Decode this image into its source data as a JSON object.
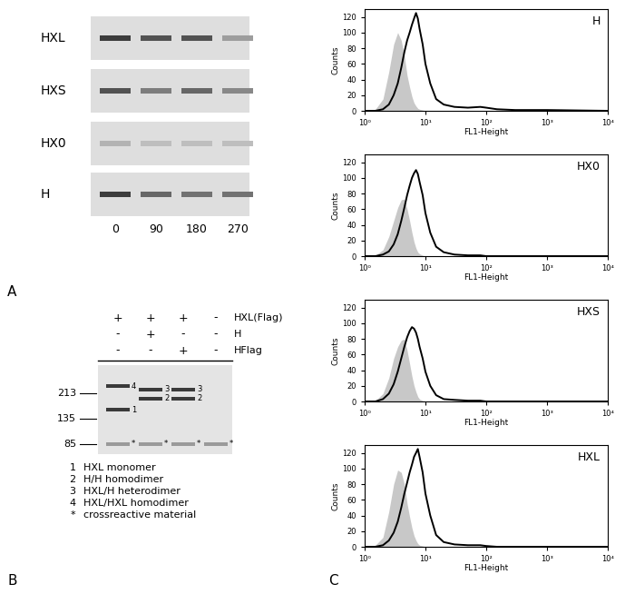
{
  "panel_labels": [
    "A",
    "B",
    "C"
  ],
  "panel_A": {
    "lanes": [
      "0",
      "90",
      "180",
      "270"
    ],
    "rows": [
      {
        "name": "HXL",
        "band_intensity": [
          0.9,
          0.8,
          0.8,
          0.45
        ]
      },
      {
        "name": "HXS",
        "band_intensity": [
          0.8,
          0.6,
          0.7,
          0.55
        ]
      },
      {
        "name": "HX0",
        "band_intensity": [
          0.35,
          0.3,
          0.3,
          0.3
        ]
      },
      {
        "name": "H",
        "band_intensity": [
          0.9,
          0.7,
          0.65,
          0.65
        ]
      }
    ]
  },
  "panel_B": {
    "header": [
      {
        "name": "HXL(Flag)",
        "signs": [
          "+",
          "+",
          "+",
          "-"
        ]
      },
      {
        "name": "H",
        "signs": [
          "-",
          "+",
          "-",
          "-"
        ]
      },
      {
        "name": "HFlag",
        "signs": [
          "-",
          "-",
          "+",
          "-"
        ]
      }
    ],
    "markers": [
      213,
      135,
      85
    ],
    "lanes": [
      [
        {
          "band": "4",
          "kDa": 241
        },
        {
          "band": "1",
          "kDa": 158
        },
        {
          "band": "*",
          "kDa": 85
        }
      ],
      [
        {
          "band": "3",
          "kDa": 229
        },
        {
          "band": "2",
          "kDa": 193
        },
        {
          "band": "*",
          "kDa": 85
        }
      ],
      [
        {
          "band": "3",
          "kDa": 229
        },
        {
          "band": "2",
          "kDa": 193
        },
        {
          "band": "*",
          "kDa": 85
        }
      ],
      [
        {
          "band": "*",
          "kDa": 85
        }
      ]
    ],
    "key": [
      {
        "symbol": "1",
        "text": "HXL monomer"
      },
      {
        "symbol": "2",
        "text": "H/H homodimer"
      },
      {
        "symbol": "3",
        "text": "HXL/H heterodimer"
      },
      {
        "symbol": "4",
        "text": "HXL/HXL homodimer"
      },
      {
        "symbol": "*",
        "text": "crossreactive material"
      }
    ]
  },
  "chart_data": [
    {
      "type": "line",
      "title": "H",
      "xlabel": "FL1-Height",
      "ylabel": "Counts",
      "log": "x",
      "x": [
        1,
        1.5,
        2,
        2.5,
        3,
        3.5,
        4,
        4.5,
        5,
        5.5,
        6,
        6.5,
        7,
        7.5,
        8,
        9,
        10,
        12,
        15,
        20,
        30,
        50,
        80,
        100,
        150,
        300,
        1000,
        10000
      ],
      "xlim": [
        1,
        10000
      ],
      "xticks": [
        {
          "value": 1,
          "label": "10⁰"
        },
        {
          "value": 10,
          "label": "10¹"
        },
        {
          "value": 100,
          "label": "10²"
        },
        {
          "value": 1000,
          "label": "10³"
        },
        {
          "value": 10000,
          "label": "10⁴"
        }
      ],
      "ylim": [
        0,
        130
      ],
      "yticks": [
        0,
        20,
        40,
        60,
        80,
        100,
        120
      ],
      "series": [
        {
          "type": "area",
          "color": "#c8c8c8",
          "values": [
            0,
            2,
            15,
            50,
            85,
            100,
            90,
            70,
            45,
            30,
            18,
            10,
            6,
            3,
            2,
            1,
            0,
            0,
            0,
            0,
            0,
            0,
            0,
            0,
            0,
            0,
            0,
            0
          ]
        },
        {
          "type": "line",
          "color": "#000000",
          "values": [
            0,
            0,
            2,
            8,
            20,
            35,
            55,
            75,
            90,
            100,
            110,
            118,
            125,
            118,
            105,
            85,
            60,
            35,
            15,
            8,
            5,
            4,
            5,
            4,
            2,
            1,
            1,
            0
          ]
        }
      ]
    },
    {
      "type": "line",
      "title": "HX0",
      "xlabel": "FL1-Height",
      "ylabel": "Counts",
      "log": "x",
      "x": [
        1,
        1.5,
        2,
        2.5,
        3,
        3.5,
        4,
        4.5,
        5,
        5.5,
        6,
        6.5,
        7,
        7.5,
        8,
        9,
        10,
        12,
        15,
        20,
        30,
        50,
        80,
        100,
        150,
        300,
        1000,
        10000
      ],
      "xlim": [
        1,
        10000
      ],
      "xticks": [
        {
          "value": 1,
          "label": "10⁰"
        },
        {
          "value": 10,
          "label": "10¹"
        },
        {
          "value": 100,
          "label": "10²"
        },
        {
          "value": 1000,
          "label": "10³"
        },
        {
          "value": 10000,
          "label": "10⁴"
        }
      ],
      "ylim": [
        0,
        130
      ],
      "yticks": [
        0,
        20,
        40,
        60,
        80,
        100,
        120
      ],
      "series": [
        {
          "type": "area",
          "color": "#c8c8c8",
          "values": [
            0,
            1,
            8,
            25,
            45,
            62,
            72,
            73,
            60,
            45,
            30,
            18,
            10,
            5,
            3,
            1,
            0,
            0,
            0,
            0,
            0,
            0,
            0,
            0,
            0,
            0,
            0,
            0
          ]
        },
        {
          "type": "line",
          "color": "#000000",
          "values": [
            0,
            0,
            2,
            6,
            15,
            28,
            45,
            62,
            78,
            90,
            100,
            106,
            110,
            105,
            95,
            78,
            55,
            30,
            12,
            5,
            2,
            1,
            1,
            0,
            0,
            0,
            0,
            0
          ]
        }
      ]
    },
    {
      "type": "line",
      "title": "HXS",
      "xlabel": "FL1-Height",
      "ylabel": "Counts",
      "log": "x",
      "x": [
        1,
        1.5,
        2,
        2.5,
        3,
        3.5,
        4,
        4.5,
        5,
        5.5,
        6,
        6.5,
        7,
        7.5,
        8,
        9,
        10,
        12,
        15,
        20,
        30,
        50,
        80,
        100,
        150,
        300,
        1000,
        10000
      ],
      "xlim": [
        1,
        10000
      ],
      "xticks": [
        {
          "value": 1,
          "label": "10⁰"
        },
        {
          "value": 10,
          "label": "10¹"
        },
        {
          "value": 100,
          "label": "10²"
        },
        {
          "value": 1000,
          "label": "10³"
        },
        {
          "value": 10000,
          "label": "10⁴"
        }
      ],
      "ylim": [
        0,
        130
      ],
      "yticks": [
        0,
        20,
        40,
        60,
        80,
        100,
        120
      ],
      "series": [
        {
          "type": "area",
          "color": "#c8c8c8",
          "values": [
            0,
            1,
            10,
            30,
            55,
            70,
            78,
            80,
            65,
            48,
            32,
            20,
            12,
            6,
            3,
            1,
            0,
            0,
            0,
            0,
            0,
            0,
            0,
            0,
            0,
            0,
            0,
            0
          ]
        },
        {
          "type": "line",
          "color": "#000000",
          "values": [
            0,
            0,
            3,
            10,
            22,
            38,
            55,
            70,
            82,
            90,
            95,
            93,
            88,
            80,
            70,
            55,
            38,
            20,
            8,
            3,
            2,
            1,
            1,
            0,
            0,
            0,
            0,
            0
          ]
        }
      ]
    },
    {
      "type": "line",
      "title": "HXL",
      "xlabel": "FL1-Height",
      "ylabel": "Counts",
      "log": "x",
      "x": [
        1,
        1.5,
        2,
        2.5,
        3,
        3.5,
        4,
        4.5,
        5,
        5.5,
        6,
        6.5,
        7,
        7.5,
        8,
        9,
        10,
        12,
        15,
        20,
        30,
        50,
        80,
        100,
        150,
        300,
        1000,
        10000
      ],
      "xlim": [
        1,
        10000
      ],
      "xticks": [
        {
          "value": 1,
          "label": "10⁰"
        },
        {
          "value": 10,
          "label": "10¹"
        },
        {
          "value": 100,
          "label": "10²"
        },
        {
          "value": 1000,
          "label": "10³"
        },
        {
          "value": 10000,
          "label": "10⁴"
        }
      ],
      "ylim": [
        0,
        130
      ],
      "yticks": [
        0,
        20,
        40,
        60,
        80,
        100,
        120
      ],
      "series": [
        {
          "type": "area",
          "color": "#c8c8c8",
          "values": [
            0,
            2,
            12,
            45,
            80,
            98,
            95,
            80,
            55,
            38,
            24,
            14,
            8,
            4,
            2,
            1,
            0,
            0,
            0,
            0,
            0,
            0,
            0,
            0,
            0,
            0,
            0,
            0
          ]
        },
        {
          "type": "line",
          "color": "#000000",
          "values": [
            0,
            0,
            2,
            8,
            18,
            32,
            50,
            68,
            82,
            95,
            105,
            115,
            120,
            125,
            115,
            95,
            68,
            40,
            15,
            6,
            3,
            2,
            2,
            1,
            0,
            0,
            0,
            0
          ]
        }
      ]
    }
  ]
}
